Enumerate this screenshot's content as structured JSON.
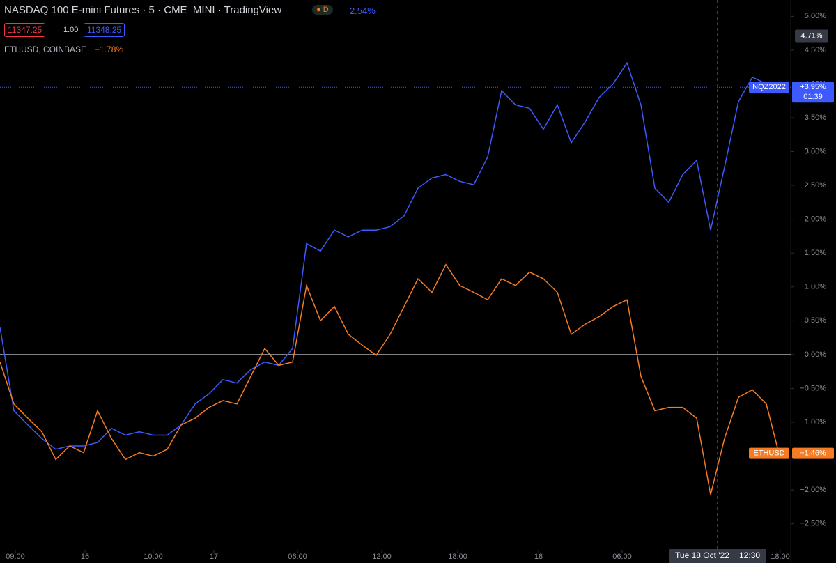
{
  "header": {
    "title": "NASDAQ 100 E-mini Futures · 5 · CME_MINI · TradingView",
    "badge": "D",
    "change": "2.54%",
    "bid": "11347.25",
    "qty": "1.00",
    "ask": "11348.25",
    "compare_title": "ETHUSD, COINBASE",
    "compare_change": "−1.78%"
  },
  "chart_data": {
    "type": "line",
    "x": [
      0,
      1,
      2,
      3,
      4,
      5,
      6,
      7,
      8,
      9,
      10,
      11,
      12,
      13,
      14,
      15,
      16,
      17,
      18,
      19,
      20,
      21,
      22,
      23,
      24,
      25,
      26,
      27,
      28,
      29,
      30,
      31,
      32,
      33,
      34,
      35,
      36,
      37,
      38,
      39,
      40,
      41,
      42,
      43,
      44,
      45,
      46,
      47,
      48,
      49,
      50,
      51,
      52,
      53,
      54,
      55,
      55.9
    ],
    "xlim": [
      0,
      56.75
    ],
    "xticks": [
      {
        "value": 1.1,
        "label": "09:00"
      },
      {
        "value": 6.1,
        "label": "16"
      },
      {
        "value": 11,
        "label": "10:00"
      },
      {
        "value": 15.35,
        "label": "17"
      },
      {
        "value": 21.35,
        "label": "06:00"
      },
      {
        "value": 27.4,
        "label": "12:00"
      },
      {
        "value": 32.85,
        "label": "18:00"
      },
      {
        "value": 38.65,
        "label": "18"
      },
      {
        "value": 44.65,
        "label": "06:00"
      },
      {
        "value": 56,
        "label": "18:00"
      }
    ],
    "ylim": [
      -3.08,
      5.24
    ],
    "yticks": [
      {
        "value": -2.5,
        "label": "−2.50%"
      },
      {
        "value": -2,
        "label": "−2.00%"
      },
      {
        "value": -1.5,
        "label": "−1.50%"
      },
      {
        "value": -1,
        "label": "−1.00%"
      },
      {
        "value": -0.5,
        "label": "−0.50%"
      },
      {
        "value": 0,
        "label": "0.00%"
      },
      {
        "value": 0.5,
        "label": "0.50%"
      },
      {
        "value": 1,
        "label": "1.00%"
      },
      {
        "value": 1.5,
        "label": "1.50%"
      },
      {
        "value": 2,
        "label": "2.00%"
      },
      {
        "value": 2.5,
        "label": "2.50%"
      },
      {
        "value": 3,
        "label": "3.00%"
      },
      {
        "value": 3.5,
        "label": "3.50%"
      },
      {
        "value": 4,
        "label": "4.00%"
      },
      {
        "value": 4.5,
        "label": "4.50%"
      },
      {
        "value": 5,
        "label": "5.00%"
      }
    ],
    "series": [
      {
        "name": "NQZ2022",
        "color": "#3d5afe",
        "last_value_label": "+3.95%",
        "countdown": "01:39",
        "values": [
          0.4,
          -0.83,
          -1.04,
          -1.24,
          -1.4,
          -1.35,
          -1.35,
          -1.3,
          -1.09,
          -1.19,
          -1.14,
          -1.19,
          -1.19,
          -1.04,
          -0.73,
          -0.58,
          -0.37,
          -0.42,
          -0.22,
          -0.11,
          -0.16,
          0.09,
          1.64,
          1.53,
          1.84,
          1.74,
          1.84,
          1.84,
          1.89,
          2.05,
          2.46,
          2.61,
          2.66,
          2.56,
          2.51,
          2.92,
          3.9,
          3.69,
          3.64,
          3.33,
          3.69,
          3.13,
          3.44,
          3.8,
          4.0,
          4.31,
          3.69,
          2.46,
          2.25,
          2.66,
          2.87,
          1.84,
          2.77,
          3.74,
          4.1,
          4.0,
          3.95
        ]
      },
      {
        "name": "ETHUSD",
        "color": "#f57c24",
        "last_value_label": "−1.46%",
        "values": [
          -0.11,
          -0.73,
          -0.94,
          -1.14,
          -1.55,
          -1.35,
          -1.45,
          -0.83,
          -1.24,
          -1.55,
          -1.45,
          -1.5,
          -1.4,
          -1.04,
          -0.94,
          -0.78,
          -0.68,
          -0.73,
          -0.32,
          0.09,
          -0.16,
          -0.11,
          1.02,
          0.5,
          0.71,
          0.3,
          0.14,
          -0.01,
          0.3,
          0.71,
          1.12,
          0.92,
          1.33,
          1.02,
          0.92,
          0.81,
          1.12,
          1.02,
          1.22,
          1.12,
          0.92,
          0.3,
          0.45,
          0.56,
          0.71,
          0.81,
          -0.32,
          -0.83,
          -0.78,
          -0.78,
          -0.94,
          -2.07,
          -1.24,
          -0.63,
          -0.52,
          -0.73,
          -1.46
        ]
      }
    ],
    "crosshair": {
      "x": 51.5,
      "y": 4.71,
      "y_label": "4.71%",
      "x_label": "Tue 18 Oct '22",
      "time_label": "12:30"
    }
  }
}
